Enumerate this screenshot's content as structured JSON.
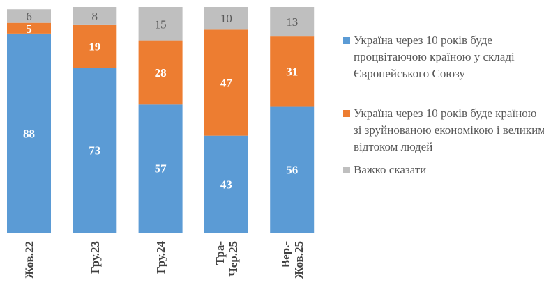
{
  "chart_data": {
    "type": "bar",
    "stacked": true,
    "categories": [
      "Жов.22",
      "Гру.23",
      "Гру.24",
      "Тра-\nЧер.25",
      "Вер.-\nЖов.25"
    ],
    "series": [
      {
        "name": "Україна через 10 років буде процвітаючою країною у складі Європейського Союзу",
        "color": "#5b9bd5",
        "values": [
          88,
          73,
          57,
          43,
          56
        ]
      },
      {
        "name": "Україна через 10 років буде країною зі зруйнованою економікою і великим відтоком людей",
        "color": "#ed7d31",
        "values": [
          5,
          19,
          28,
          47,
          31
        ]
      },
      {
        "name": "Важко сказати",
        "color": "#bfbfbf",
        "values": [
          6,
          8,
          15,
          10,
          13
        ]
      }
    ],
    "ylim": [
      0,
      100
    ],
    "grid": false,
    "legend_position": "right",
    "title": "",
    "xlabel": "",
    "ylabel": ""
  }
}
